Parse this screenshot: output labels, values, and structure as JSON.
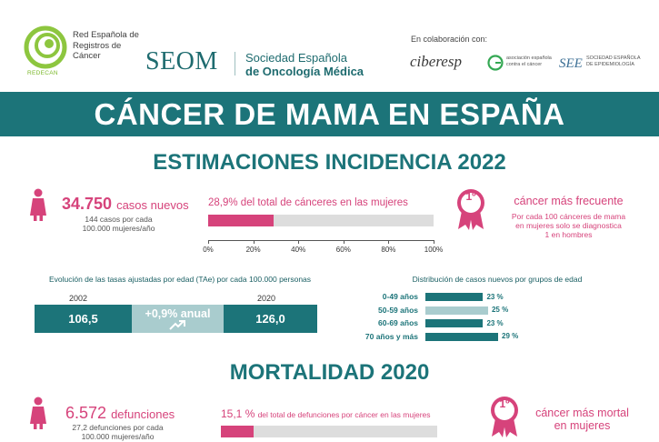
{
  "header": {
    "redecan_name": "Red Española de Registros de Cáncer",
    "redecan_sub": "REDECAN",
    "seom_word": "SEOM",
    "seom_line1": "Sociedad Española",
    "seom_line2": "de Oncología Médica",
    "collab_label": "En colaboración con:",
    "ciberesp": "ciberesp",
    "aecc_text": "asociación española contra el cáncer",
    "see_mark": "SEE",
    "see_text": "SOCIEDAD ESPAÑOLA DE EPIDEMIOLOGÍA"
  },
  "title": "CÁNCER DE MAMA EN ESPAÑA",
  "incidence": {
    "section_title": "ESTIMACIONES INCIDENCIA 2022",
    "cases_number": "34.750",
    "cases_label": "casos nuevos",
    "cases_rate_line1": "144 casos por cada",
    "cases_rate_line2": "100.000 mujeres/año",
    "pct_caption": "28,9% del total de cánceres en las mujeres",
    "pct_value": 28.9,
    "axis_ticks": [
      "0%",
      "20%",
      "40%",
      "60%",
      "80%",
      "100%"
    ],
    "rank_badge": "1º",
    "rank_title": "cáncer más frecuente",
    "rank_sub_line1": "Por cada 100 cánceres de mama",
    "rank_sub_line2": "en mujeres solo se diagnostica",
    "rank_sub_line3": "1 en hombres"
  },
  "evolution": {
    "caption": "Evolución de las tasas ajustadas por edad (TAe) por cada 100.000 personas",
    "year_start": "2002",
    "year_end": "2020",
    "value_start": "106,5",
    "value_change": "+0,9% anual",
    "value_end": "126,0"
  },
  "distribution": {
    "caption": "Distribución de casos nuevos por grupos de edad",
    "groups": [
      {
        "label": "0-49 años",
        "value": 23,
        "display": "23 %",
        "color": "#1c7479"
      },
      {
        "label": "50-59 años",
        "value": 25,
        "display": "25 %",
        "color": "#a9ccce"
      },
      {
        "label": "60-69 años",
        "value": 23,
        "display": "23 %",
        "color": "#1c7479"
      },
      {
        "label": "70 años y más",
        "value": 29,
        "display": "29 %",
        "color": "#1c7479"
      }
    ]
  },
  "mortality": {
    "section_title": "MORTALIDAD 2020",
    "deaths_number": "6.572",
    "deaths_label": "defunciones",
    "deaths_rate_line1": "27,2 defunciones por cada",
    "deaths_rate_line2": "100.000 mujeres/año",
    "pct_caption_num": "15,1 %",
    "pct_caption_rest": "del total de defunciones por cáncer en las mujeres",
    "pct_value": 15.1,
    "rank_badge": "1º",
    "rank_title_line1": "cáncer más mortal",
    "rank_title_line2": "en mujeres"
  },
  "colors": {
    "teal": "#1c7479",
    "light_teal": "#a9ccce",
    "pink": "#d6437b",
    "gray_track": "#dddddd"
  }
}
